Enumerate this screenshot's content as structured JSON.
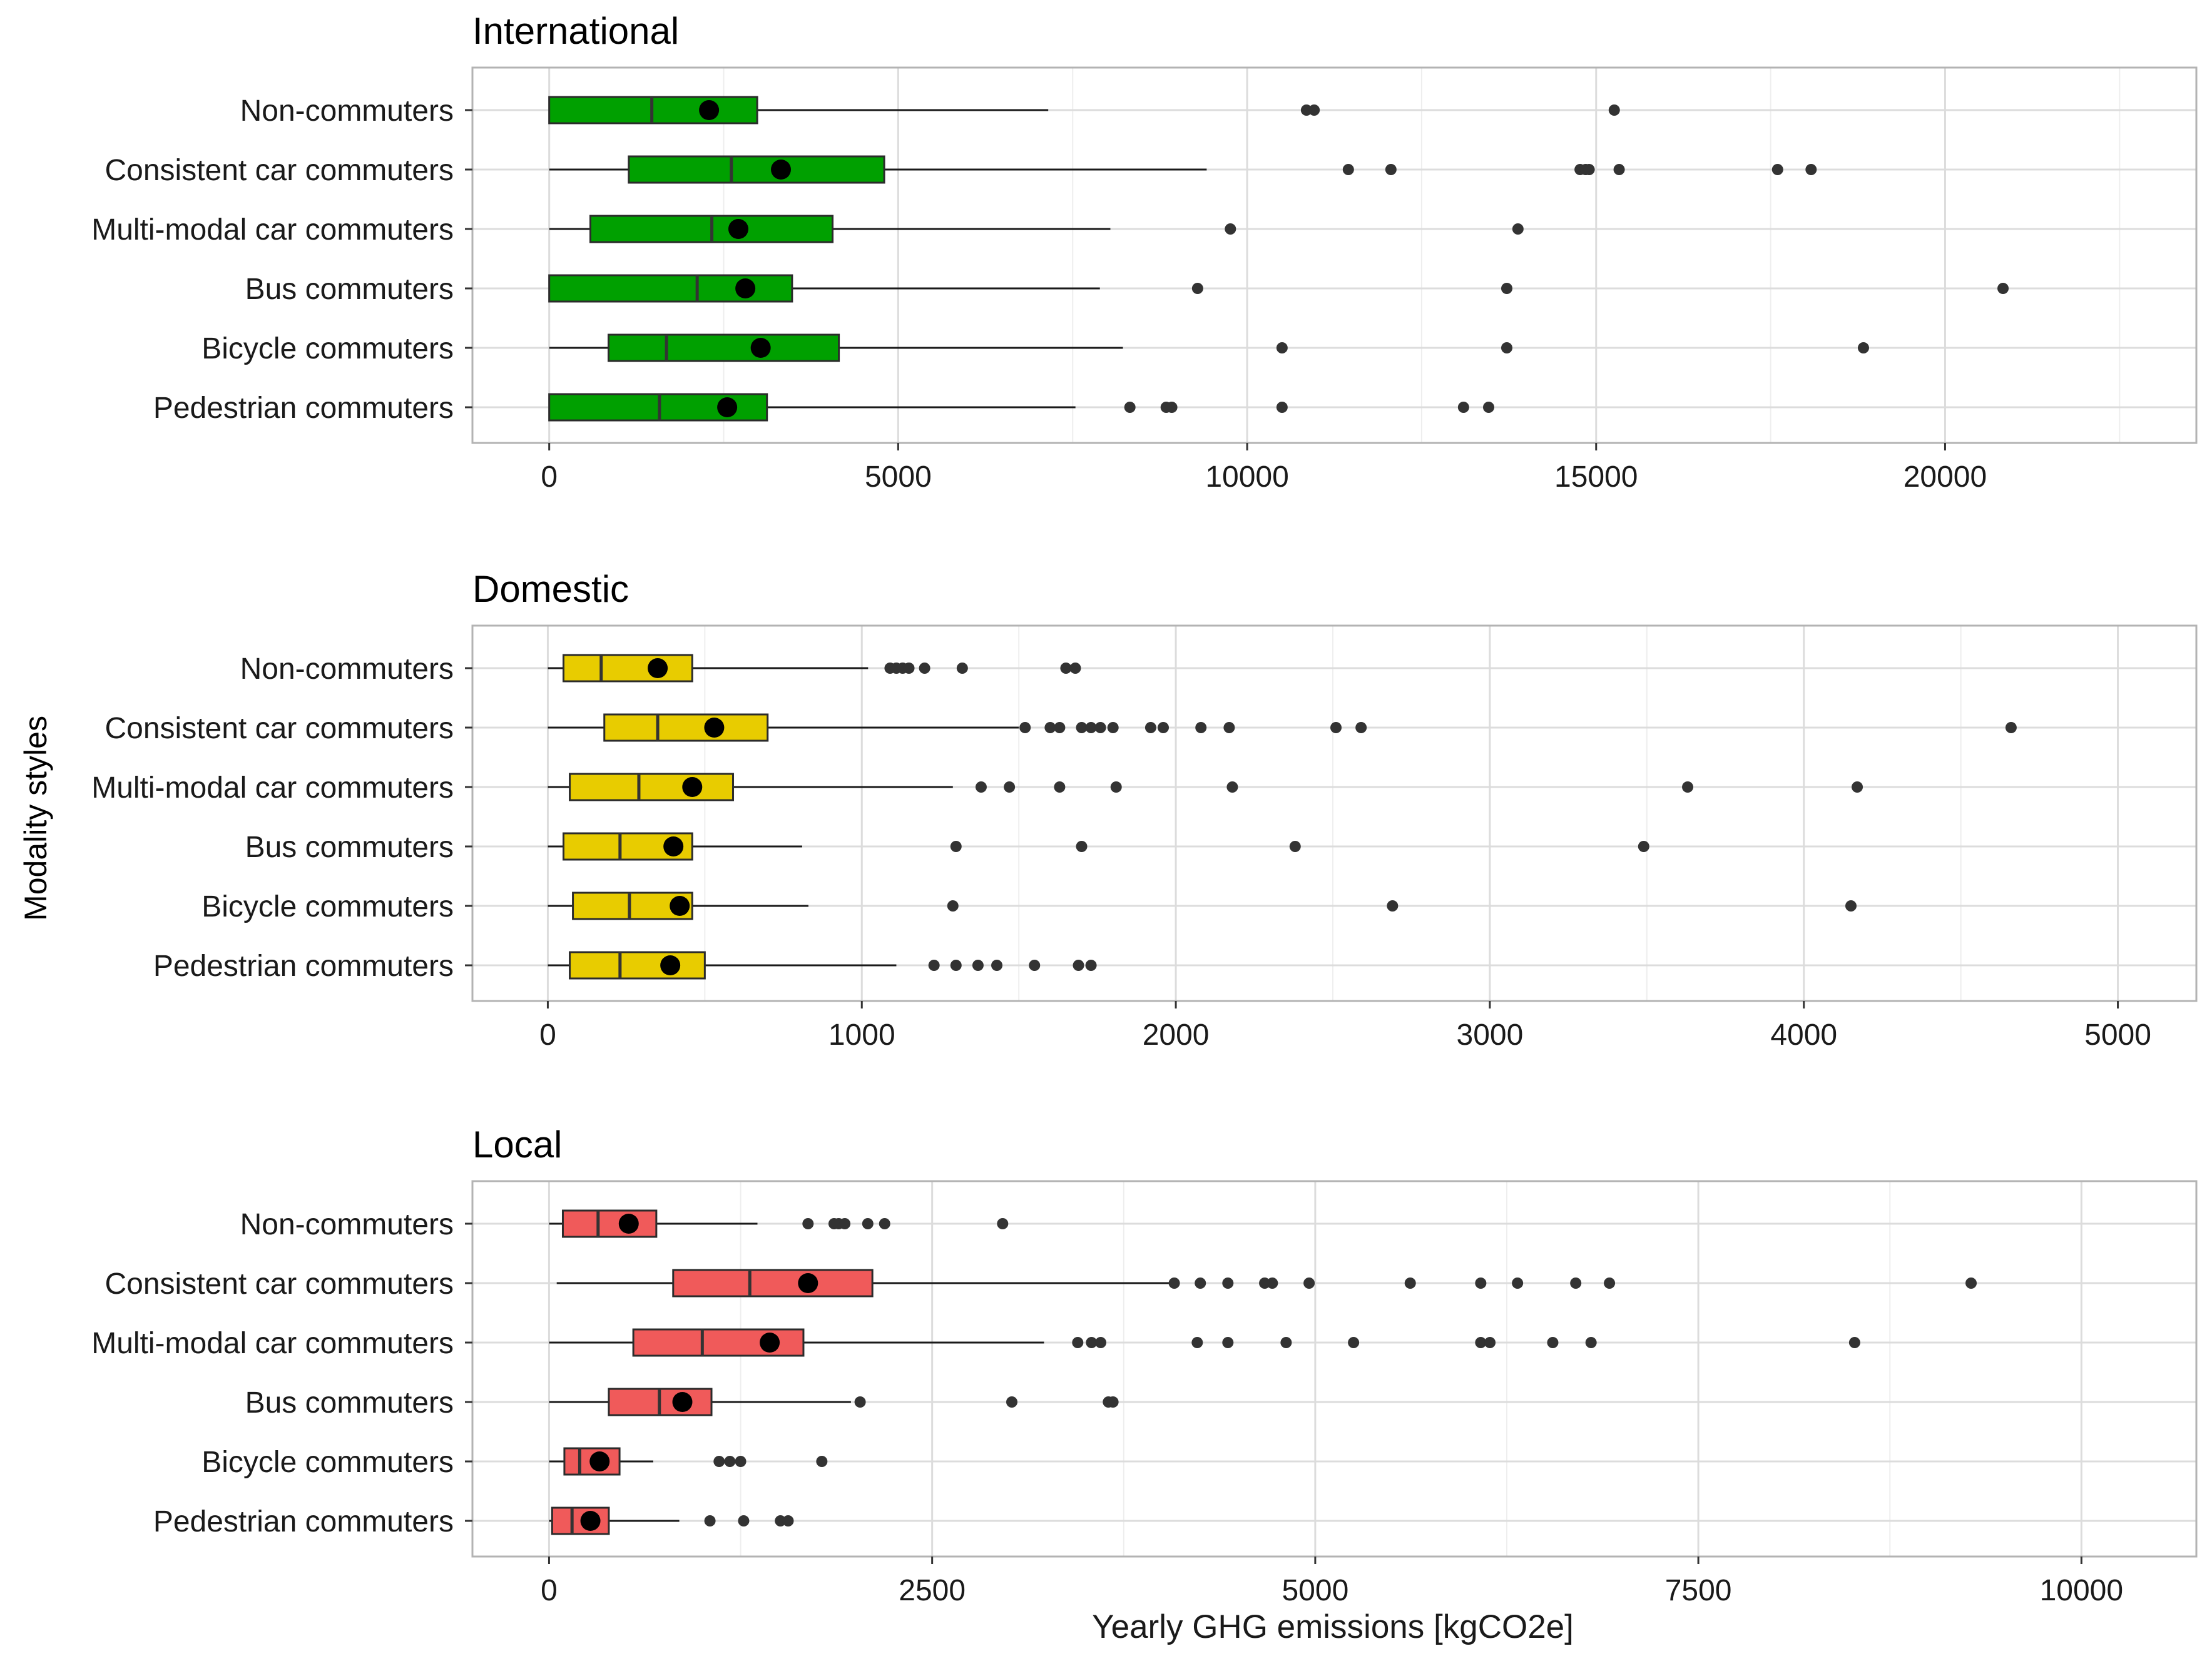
{
  "chart_data": {
    "type": "boxplot",
    "orientation": "horizontal",
    "y_axis_title": "Modality styles",
    "x_axis_title": "Yearly GHG emissions [kgCO2e]",
    "categories": [
      "Non-commuters",
      "Consistent car commuters",
      "Multi-modal car commuters",
      "Bus commuters",
      "Bicycle commuters",
      "Pedestrian commuters"
    ],
    "panels": [
      {
        "title": "International",
        "fill": "#00A000",
        "xlim": [
          -1100,
          23600
        ],
        "ticks": [
          0,
          5000,
          10000,
          15000,
          20000
        ],
        "tick_labels": [
          "0",
          "5000",
          "10000",
          "15000",
          "20000"
        ],
        "boxes": [
          {
            "category": "Non-commuters",
            "whisker_low": 0,
            "q1": 0,
            "median": 1470,
            "q3": 2980,
            "whisker_high": 7150,
            "mean": 2290,
            "outliers": [
              10850,
              10960,
              15260
            ]
          },
          {
            "category": "Consistent car commuters",
            "whisker_low": 0,
            "q1": 1140,
            "median": 2610,
            "q3": 4800,
            "whisker_high": 9420,
            "mean": 3320,
            "outliers": [
              11450,
              12060,
              14770,
              14850,
              14900,
              15330,
              17600,
              18080
            ]
          },
          {
            "category": "Multi-modal car commuters",
            "whisker_low": 0,
            "q1": 590,
            "median": 2330,
            "q3": 4060,
            "whisker_high": 8040,
            "mean": 2710,
            "outliers": [
              9760,
              13880
            ]
          },
          {
            "category": "Bus commuters",
            "whisker_low": 0,
            "q1": 0,
            "median": 2120,
            "q3": 3480,
            "whisker_high": 7890,
            "mean": 2810,
            "outliers": [
              9290,
              13720,
              20830
            ]
          },
          {
            "category": "Bicycle commuters",
            "whisker_low": 0,
            "q1": 850,
            "median": 1680,
            "q3": 4150,
            "whisker_high": 8220,
            "mean": 3030,
            "outliers": [
              10500,
              13720,
              18830
            ]
          },
          {
            "category": "Pedestrian commuters",
            "whisker_low": 0,
            "q1": 0,
            "median": 1580,
            "q3": 3120,
            "whisker_high": 7540,
            "mean": 2550,
            "outliers": [
              8320,
              8840,
              8920,
              10500,
              13100,
              13460
            ]
          }
        ]
      },
      {
        "title": "Domestic",
        "fill": "#E8CC00",
        "xlim": [
          -240,
          5250
        ],
        "ticks": [
          0,
          1000,
          2000,
          3000,
          4000,
          5000
        ],
        "tick_labels": [
          "0",
          "1000",
          "2000",
          "3000",
          "4000",
          "5000"
        ],
        "boxes": [
          {
            "category": "Non-commuters",
            "whisker_low": 0,
            "q1": 50,
            "median": 170,
            "q3": 460,
            "whisker_high": 1020,
            "mean": 350,
            "outliers": [
              1090,
              1110,
              1130,
              1150,
              1200,
              1320,
              1650,
              1680
            ]
          },
          {
            "category": "Consistent car commuters",
            "whisker_low": 0,
            "q1": 180,
            "median": 350,
            "q3": 700,
            "whisker_high": 1500,
            "mean": 530,
            "outliers": [
              1520,
              1600,
              1630,
              1700,
              1730,
              1760,
              1800,
              1920,
              1960,
              2080,
              2170,
              2510,
              2590,
              4660
            ]
          },
          {
            "category": "Multi-modal car commuters",
            "whisker_low": 0,
            "q1": 70,
            "median": 290,
            "q3": 590,
            "whisker_high": 1290,
            "mean": 460,
            "outliers": [
              1380,
              1470,
              1630,
              1810,
              2180,
              3630,
              4170
            ]
          },
          {
            "category": "Bus commuters",
            "whisker_low": 0,
            "q1": 50,
            "median": 230,
            "q3": 460,
            "whisker_high": 810,
            "mean": 400,
            "outliers": [
              1300,
              1700,
              2380,
              3490
            ]
          },
          {
            "category": "Bicycle commuters",
            "whisker_low": 0,
            "q1": 80,
            "median": 260,
            "q3": 460,
            "whisker_high": 830,
            "mean": 420,
            "outliers": [
              1290,
              2690,
              4150
            ]
          },
          {
            "category": "Pedestrian commuters",
            "whisker_low": 0,
            "q1": 70,
            "median": 230,
            "q3": 500,
            "whisker_high": 1110,
            "mean": 390,
            "outliers": [
              1230,
              1300,
              1370,
              1430,
              1550,
              1690,
              1730
            ]
          }
        ]
      },
      {
        "title": "Local",
        "fill": "#F05A5A",
        "xlim": [
          -500,
          10750
        ],
        "ticks": [
          0,
          2500,
          5000,
          7500,
          10000
        ],
        "tick_labels": [
          "0",
          "2500",
          "5000",
          "7500",
          "10000"
        ],
        "boxes": [
          {
            "category": "Non-commuters",
            "whisker_low": 0,
            "q1": 90,
            "median": 320,
            "q3": 700,
            "whisker_high": 1360,
            "mean": 520,
            "outliers": [
              1690,
              1860,
              1890,
              1930,
              2080,
              2190,
              2960
            ]
          },
          {
            "category": "Consistent car commuters",
            "whisker_low": 50,
            "q1": 810,
            "median": 1310,
            "q3": 2110,
            "whisker_high": 4050,
            "mean": 1690,
            "outliers": [
              4080,
              4250,
              4430,
              4670,
              4720,
              4960,
              5620,
              6080,
              6320,
              6700,
              6920,
              9280
            ]
          },
          {
            "category": "Multi-modal car commuters",
            "whisker_low": 0,
            "q1": 550,
            "median": 1000,
            "q3": 1660,
            "whisker_high": 3230,
            "mean": 1440,
            "outliers": [
              3450,
              3540,
              3600,
              4230,
              4430,
              4810,
              5250,
              6080,
              6140,
              6550,
              6800,
              8520
            ]
          },
          {
            "category": "Bus commuters",
            "whisker_low": 0,
            "q1": 390,
            "median": 720,
            "q3": 1060,
            "whisker_high": 1970,
            "mean": 870,
            "outliers": [
              2030,
              3020,
              3650,
              3680
            ]
          },
          {
            "category": "Bicycle commuters",
            "whisker_low": 0,
            "q1": 100,
            "median": 200,
            "q3": 460,
            "whisker_high": 680,
            "mean": 330,
            "outliers": [
              1110,
              1180,
              1250,
              1780
            ]
          },
          {
            "category": "Pedestrian commuters",
            "whisker_low": 0,
            "q1": 20,
            "median": 150,
            "q3": 390,
            "whisker_high": 850,
            "mean": 270,
            "outliers": [
              1050,
              1270,
              1510,
              1560
            ]
          }
        ]
      }
    ]
  }
}
